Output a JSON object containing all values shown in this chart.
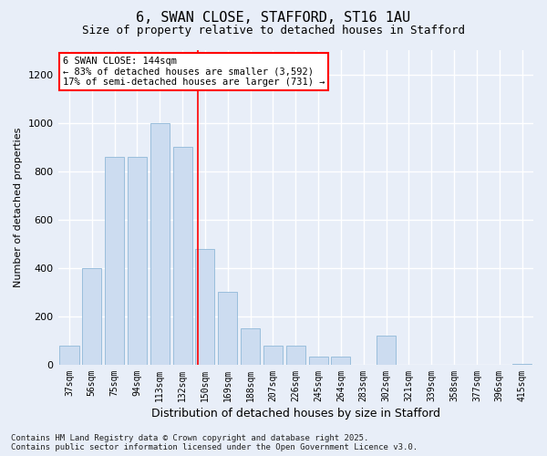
{
  "title_line1": "6, SWAN CLOSE, STAFFORD, ST16 1AU",
  "title_line2": "Size of property relative to detached houses in Stafford",
  "xlabel": "Distribution of detached houses by size in Stafford",
  "ylabel": "Number of detached properties",
  "categories": [
    "37sqm",
    "56sqm",
    "75sqm",
    "94sqm",
    "113sqm",
    "132sqm",
    "150sqm",
    "169sqm",
    "188sqm",
    "207sqm",
    "226sqm",
    "245sqm",
    "264sqm",
    "283sqm",
    "302sqm",
    "321sqm",
    "339sqm",
    "358sqm",
    "377sqm",
    "396sqm",
    "415sqm"
  ],
  "values": [
    80,
    400,
    860,
    860,
    1000,
    900,
    480,
    300,
    150,
    80,
    80,
    35,
    35,
    0,
    120,
    0,
    0,
    0,
    0,
    0,
    5
  ],
  "bar_color": "#ccdcf0",
  "bar_edge_color": "#90b8d8",
  "ylim": [
    0,
    1300
  ],
  "yticks": [
    0,
    200,
    400,
    600,
    800,
    1000,
    1200
  ],
  "red_line_x": 5.67,
  "annotation_text": "6 SWAN CLOSE: 144sqm\n← 83% of detached houses are smaller (3,592)\n17% of semi-detached houses are larger (731) →",
  "footer_line1": "Contains HM Land Registry data © Crown copyright and database right 2025.",
  "footer_line2": "Contains public sector information licensed under the Open Government Licence v3.0.",
  "bg_color": "#e8eef8",
  "grid_color": "#ffffff",
  "title_fontsize": 11,
  "subtitle_fontsize": 9,
  "ylabel_fontsize": 8,
  "xlabel_fontsize": 9,
  "tick_fontsize": 7,
  "footer_fontsize": 6.5,
  "annot_fontsize": 7.5
}
